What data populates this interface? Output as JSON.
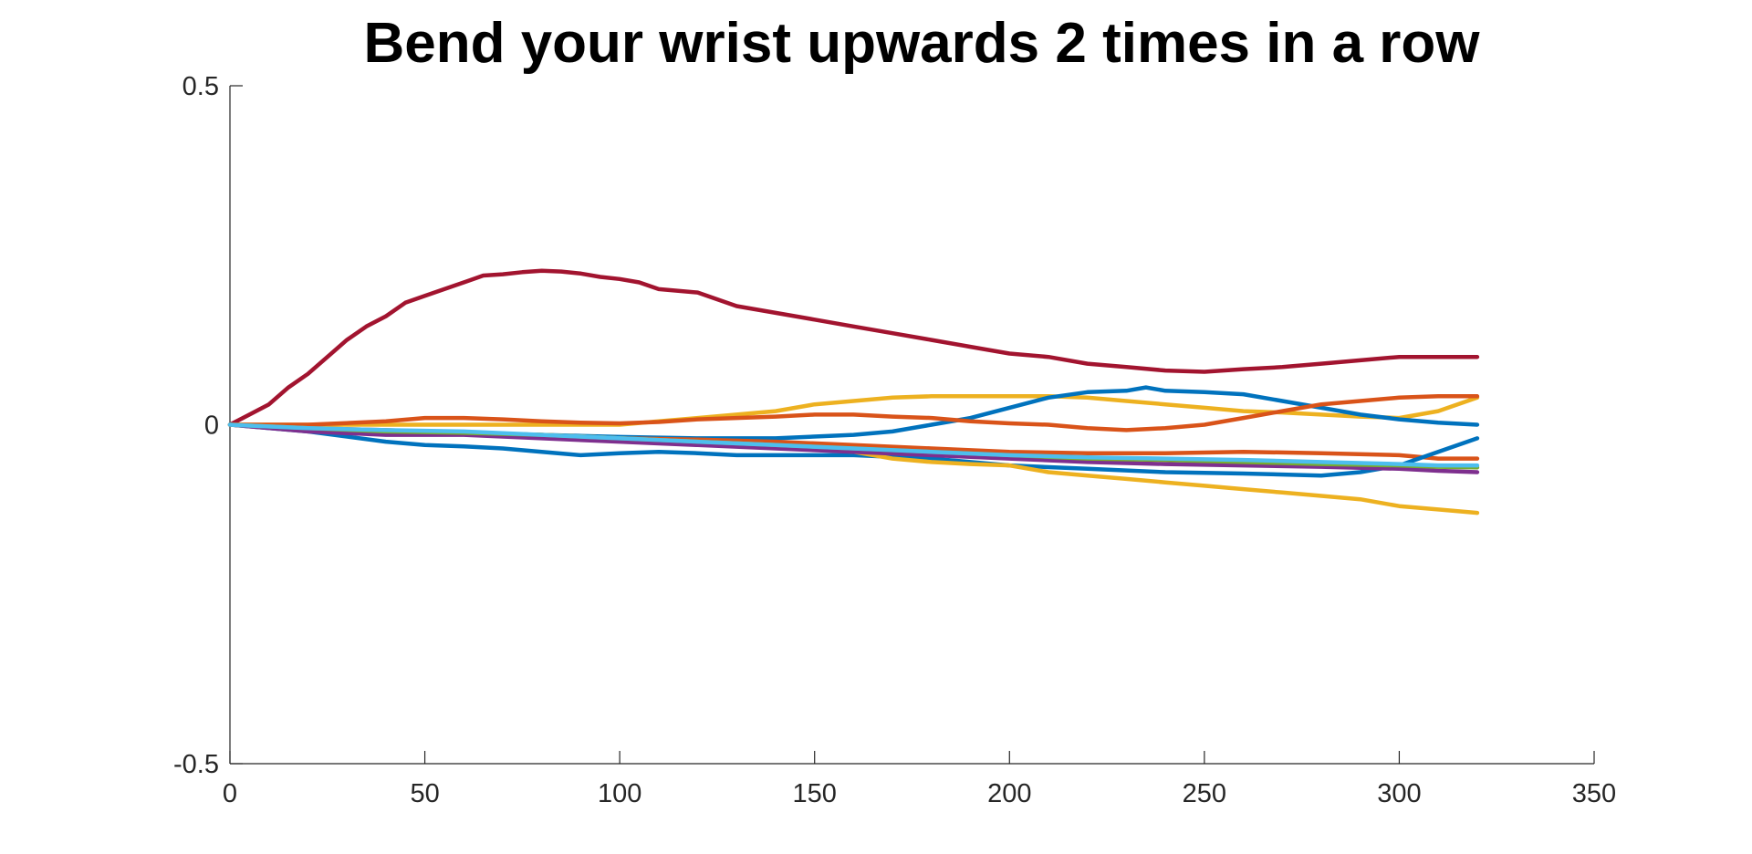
{
  "chart_data": {
    "type": "line",
    "title": "Bend your wrist upwards 2 times in a row",
    "xlabel": "",
    "ylabel": "",
    "xlim": [
      0,
      350
    ],
    "ylim": [
      -0.5,
      0.5
    ],
    "xticks": [
      0,
      50,
      100,
      150,
      200,
      250,
      300,
      350
    ],
    "xtick_labels": [
      "0",
      "50",
      "100",
      "150",
      "200",
      "250",
      "300",
      "350"
    ],
    "yticks": [
      -0.5,
      0,
      0.5
    ],
    "ytick_labels": [
      "-0.5",
      "0",
      "0.5"
    ],
    "grid": false,
    "series": [
      {
        "color": "#A2142F",
        "x": [
          0,
          5,
          10,
          15,
          20,
          25,
          30,
          35,
          40,
          45,
          50,
          55,
          60,
          65,
          70,
          75,
          80,
          85,
          90,
          95,
          100,
          105,
          110,
          120,
          130,
          140,
          150,
          160,
          170,
          180,
          190,
          200,
          210,
          220,
          230,
          240,
          250,
          260,
          270,
          280,
          290,
          300,
          310,
          320
        ],
        "y": [
          0,
          0.015,
          0.03,
          0.055,
          0.075,
          0.1,
          0.125,
          0.145,
          0.16,
          0.18,
          0.19,
          0.2,
          0.21,
          0.22,
          0.222,
          0.225,
          0.227,
          0.226,
          0.223,
          0.218,
          0.215,
          0.21,
          0.2,
          0.195,
          0.175,
          0.165,
          0.155,
          0.145,
          0.135,
          0.125,
          0.115,
          0.105,
          0.1,
          0.09,
          0.085,
          0.08,
          0.078,
          0.082,
          0.085,
          0.09,
          0.095,
          0.1,
          0.1,
          0.1
        ]
      },
      {
        "color": "#EDB120",
        "x": [
          0,
          20,
          40,
          60,
          80,
          100,
          110,
          120,
          130,
          140,
          150,
          160,
          170,
          180,
          190,
          200,
          210,
          220,
          230,
          240,
          250,
          260,
          270,
          280,
          290,
          300,
          310,
          320
        ],
        "y": [
          0,
          0,
          0,
          0,
          0,
          0,
          0.005,
          0.01,
          0.015,
          0.02,
          0.03,
          0.035,
          0.04,
          0.042,
          0.042,
          0.042,
          0.042,
          0.04,
          0.035,
          0.03,
          0.025,
          0.02,
          0.018,
          0.015,
          0.012,
          0.01,
          0.02,
          0.04
        ]
      },
      {
        "color": "#0072BD",
        "x": [
          0,
          20,
          40,
          60,
          80,
          100,
          120,
          140,
          160,
          170,
          180,
          190,
          200,
          210,
          220,
          230,
          235,
          240,
          250,
          260,
          270,
          280,
          290,
          300,
          310,
          320
        ],
        "y": [
          0,
          -0.005,
          -0.01,
          -0.012,
          -0.015,
          -0.018,
          -0.02,
          -0.02,
          -0.015,
          -0.01,
          0,
          0.01,
          0.025,
          0.04,
          0.048,
          0.05,
          0.055,
          0.05,
          0.048,
          0.045,
          0.035,
          0.025,
          0.015,
          0.008,
          0.003,
          0
        ]
      },
      {
        "color": "#D95319",
        "x": [
          0,
          20,
          40,
          50,
          60,
          70,
          80,
          90,
          100,
          110,
          120,
          130,
          140,
          150,
          160,
          170,
          180,
          190,
          200,
          210,
          220,
          230,
          240,
          250,
          260,
          270,
          280,
          290,
          300,
          310,
          320
        ],
        "y": [
          0,
          0,
          0.005,
          0.01,
          0.01,
          0.008,
          0.005,
          0.003,
          0.002,
          0.004,
          0.008,
          0.01,
          0.012,
          0.015,
          0.015,
          0.012,
          0.01,
          0.005,
          0.002,
          0,
          -0.005,
          -0.008,
          -0.005,
          0,
          0.01,
          0.02,
          0.03,
          0.035,
          0.04,
          0.042,
          0.042
        ]
      },
      {
        "color": "#D95319",
        "x": [
          0,
          20,
          40,
          60,
          80,
          100,
          120,
          140,
          160,
          180,
          200,
          220,
          240,
          260,
          280,
          300,
          310,
          320
        ],
        "y": [
          0,
          -0.005,
          -0.008,
          -0.012,
          -0.015,
          -0.02,
          -0.022,
          -0.025,
          -0.03,
          -0.035,
          -0.04,
          -0.042,
          -0.042,
          -0.04,
          -0.042,
          -0.045,
          -0.05,
          -0.05
        ]
      },
      {
        "color": "#0072BD",
        "x": [
          0,
          20,
          40,
          50,
          60,
          70,
          80,
          90,
          100,
          110,
          120,
          130,
          140,
          160,
          180,
          200,
          220,
          240,
          260,
          280,
          290,
          300,
          310,
          320
        ],
        "y": [
          0,
          -0.01,
          -0.025,
          -0.03,
          -0.032,
          -0.035,
          -0.04,
          -0.045,
          -0.042,
          -0.04,
          -0.042,
          -0.045,
          -0.045,
          -0.045,
          -0.05,
          -0.06,
          -0.065,
          -0.07,
          -0.072,
          -0.075,
          -0.07,
          -0.06,
          -0.04,
          -0.02
        ]
      },
      {
        "color": "#EDB120",
        "x": [
          0,
          20,
          40,
          60,
          80,
          100,
          120,
          140,
          160,
          170,
          180,
          190,
          200,
          210,
          220,
          230,
          240,
          250,
          260,
          270,
          280,
          290,
          300,
          310,
          320
        ],
        "y": [
          0,
          -0.005,
          -0.01,
          -0.012,
          -0.015,
          -0.02,
          -0.025,
          -0.03,
          -0.04,
          -0.05,
          -0.055,
          -0.058,
          -0.06,
          -0.07,
          -0.075,
          -0.08,
          -0.085,
          -0.09,
          -0.095,
          -0.1,
          -0.105,
          -0.11,
          -0.12,
          -0.125,
          -0.13
        ]
      },
      {
        "color": "#7E2F8E",
        "x": [
          0,
          20,
          40,
          60,
          80,
          100,
          120,
          140,
          160,
          180,
          200,
          220,
          240,
          260,
          280,
          300,
          310,
          320
        ],
        "y": [
          0,
          -0.01,
          -0.015,
          -0.015,
          -0.02,
          -0.025,
          -0.03,
          -0.035,
          -0.04,
          -0.045,
          -0.05,
          -0.055,
          -0.058,
          -0.06,
          -0.062,
          -0.065,
          -0.068,
          -0.07
        ]
      },
      {
        "color": "#77AC30",
        "x": [
          0,
          20,
          40,
          60,
          80,
          100,
          120,
          140,
          160,
          180,
          200,
          220,
          240,
          260,
          280,
          300,
          310,
          320
        ],
        "y": [
          0,
          -0.005,
          -0.01,
          -0.012,
          -0.015,
          -0.02,
          -0.025,
          -0.03,
          -0.035,
          -0.04,
          -0.045,
          -0.05,
          -0.052,
          -0.055,
          -0.058,
          -0.06,
          -0.062,
          -0.063
        ]
      },
      {
        "color": "#4DBEEE",
        "x": [
          0,
          20,
          40,
          60,
          80,
          100,
          120,
          140,
          160,
          180,
          200,
          220,
          240,
          260,
          280,
          300,
          310,
          320
        ],
        "y": [
          0,
          -0.005,
          -0.008,
          -0.01,
          -0.015,
          -0.02,
          -0.025,
          -0.03,
          -0.035,
          -0.04,
          -0.045,
          -0.048,
          -0.05,
          -0.052,
          -0.055,
          -0.058,
          -0.06,
          -0.06
        ]
      }
    ]
  }
}
